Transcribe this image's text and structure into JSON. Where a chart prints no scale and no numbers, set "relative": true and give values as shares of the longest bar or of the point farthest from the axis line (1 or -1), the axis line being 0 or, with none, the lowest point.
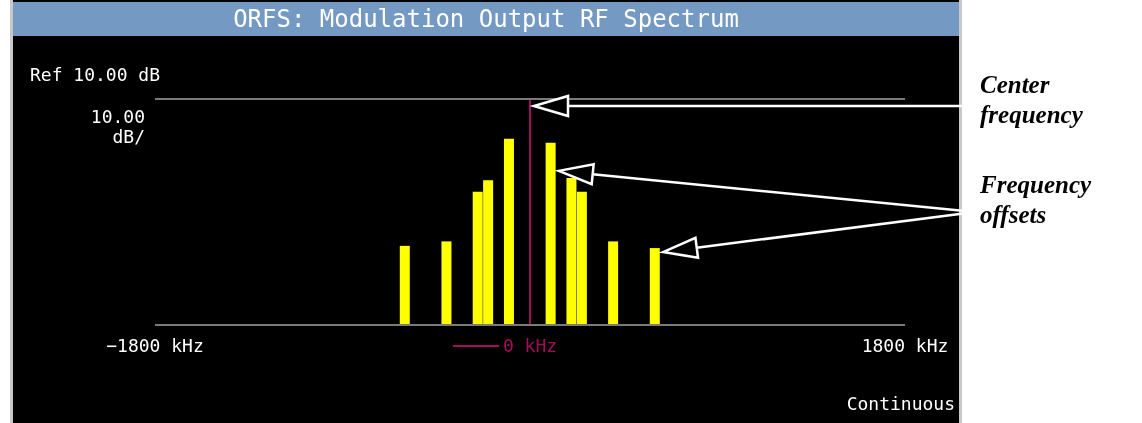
{
  "chart_data": {
    "type": "bar",
    "title": "ORFS: Modulation Output RF Spectrum",
    "ylabel": "10.00 dB/",
    "relative": true,
    "x": [
      -600,
      -400,
      -250,
      -200,
      -100,
      100,
      200,
      250,
      400,
      600
    ],
    "values": [
      0.425,
      0.449,
      0.716,
      0.777,
      1,
      0.978,
      0.789,
      0.716,
      0.449,
      0.413
    ],
    "color": "#ffff00",
    "xlim": [
      -1800,
      1800
    ],
    "xticks": [
      {
        "value": -1800,
        "label": "−1800 kHz"
      },
      {
        "value": 0,
        "label": "0 kHz"
      },
      {
        "value": 1800,
        "label": "1800 kHz"
      }
    ],
    "tick_labels": "x",
    "ref_lines": [
      {
        "axis": "x",
        "value": 0,
        "color": "#a0105a"
      }
    ],
    "annotations": [
      "Ref 10.00 dB",
      "Continuous",
      "Center frequency",
      "Frequency offsets"
    ]
  }
}
